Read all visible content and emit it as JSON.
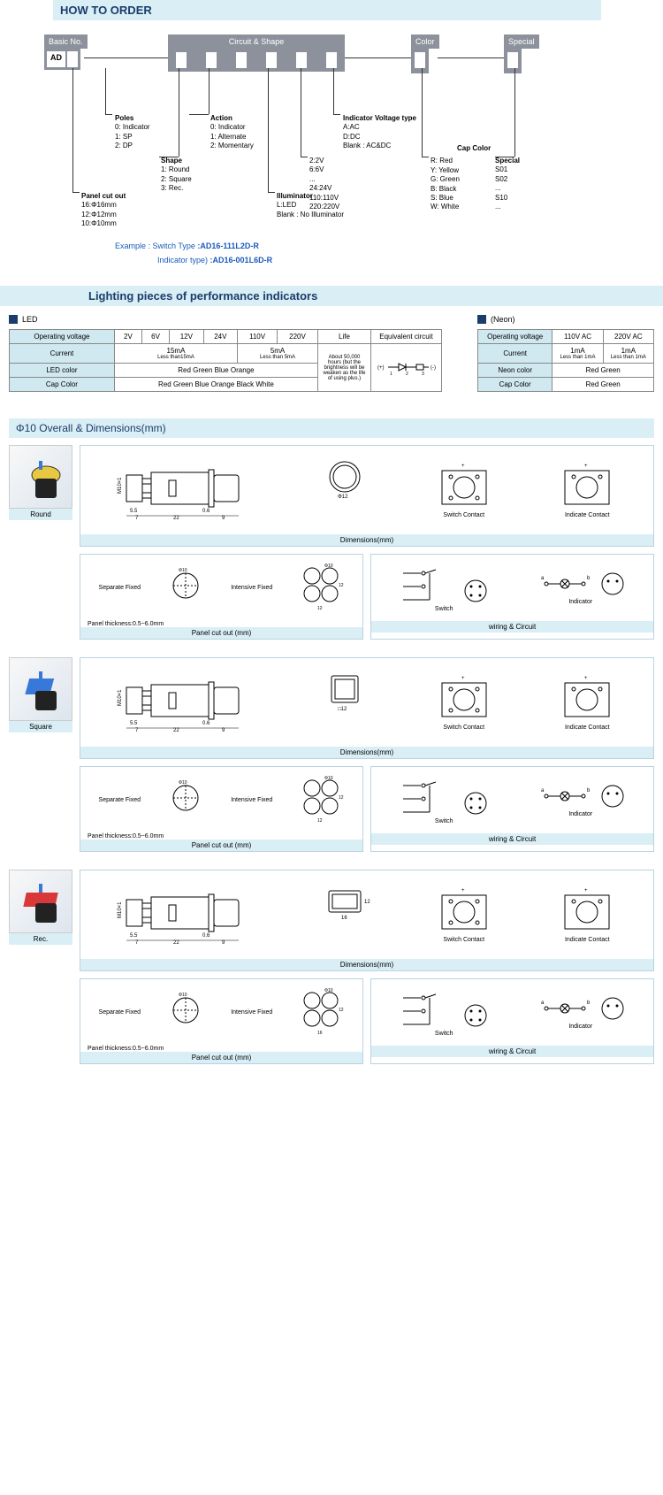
{
  "title": "HOW TO ORDER",
  "basic": {
    "label": "Basic No.",
    "code": "AD"
  },
  "circuit": {
    "label": "Circuit & Shape"
  },
  "color_box": {
    "label": "Color"
  },
  "special_box": {
    "label": "Special"
  },
  "panel_cutout": {
    "title": "Panel cut out",
    "items": [
      "16:Φ16mm",
      "12:Φ12mm",
      "10:Φ10mm"
    ]
  },
  "poles": {
    "title": "Poles",
    "items": [
      "0: Indicator",
      "1: SP",
      "2: DP"
    ]
  },
  "shape": {
    "title": "Shape",
    "items": [
      "1: Round",
      "2: Square",
      "3: Rec."
    ]
  },
  "action": {
    "title": "Action",
    "items": [
      "0: Indicator",
      "1: Alternate",
      "2: Momentary"
    ]
  },
  "illuminator": {
    "title": "Illuminator",
    "items": [
      "L:LED",
      "Blank : No Illuminator"
    ]
  },
  "voltage_list": {
    "items": [
      "2:2V",
      "6:6V",
      "...",
      "24:24V",
      "110:110V",
      "220:220V"
    ]
  },
  "ivt": {
    "title": "Indicator Voltage type",
    "items": [
      "A:AC",
      "D:DC",
      "Blank : AC&DC"
    ]
  },
  "cap_color": {
    "title": "Cap Color",
    "items": [
      "R: Red",
      "Y: Yellow",
      "G: Green",
      "B: Black",
      "S: Blue",
      "W: White"
    ]
  },
  "special": {
    "title": "Special",
    "items": [
      "S01",
      "S02",
      "...",
      "S10",
      "..."
    ]
  },
  "example": {
    "label": "Example : Switch Type",
    "val1": ":AD16-111L2D-R",
    "label2": "Indicator type)",
    "val2": ":AD16-001L6D-R"
  },
  "perf_title": "Lighting pieces of performance indicators",
  "led": {
    "label": "LED",
    "headers": [
      "Operating voltage",
      "2V",
      "6V",
      "12V",
      "24V",
      "110V",
      "220V",
      "Life",
      "Equivalent circuit"
    ],
    "current_label": "Current",
    "current1": "15mA",
    "current1_sub": "Less than15mA",
    "current2": "5mA",
    "current2_sub": "Less than 5mA",
    "ledcolor_label": "LED color",
    "ledcolor": "Red  Green Blue  Orange",
    "capcolor_label": "Cap Color",
    "capcolor": "Red  Green Blue Orange Black White",
    "life": "About 50,000 hours (but the brightness will be weaken as the life of using plus.)",
    "circuit": "(+) 1 → 2 → 3 (-)"
  },
  "neon": {
    "label": "(Neon)",
    "headers": [
      "Operating voltage",
      "110V AC",
      "220V AC"
    ],
    "current_label": "Current",
    "cur1": "1mA",
    "cur1_sub": "Less than 1mA",
    "cur2": "1mA",
    "cur2_sub": "Less than 1mA",
    "neoncolor_label": "Neon color",
    "neoncolor": "Red  Green",
    "capcolor_label": "Cap Color",
    "capcolor": "Red  Green"
  },
  "dims": {
    "title": "Φ10  Overall & Dimensions(mm)",
    "shapes": [
      {
        "name": "Round",
        "color": "#e8c840",
        "width": "Φ12"
      },
      {
        "name": "Square",
        "color": "#3878d8",
        "width": "□12"
      },
      {
        "name": "Rec.",
        "color": "#d83838",
        "width": "16",
        "height": "12"
      }
    ],
    "body_dims": {
      "thread": "M10×1",
      "a": "5.5",
      "b": "7",
      "c": "22",
      "d": "0.6",
      "e": "9"
    },
    "switch_contact": "Switch Contact",
    "indicate_contact": "Indicate Contact",
    "dims_label": "Dimensions(mm)",
    "cutout": {
      "sep": "Separate Fixed",
      "int": "Intensive Fixed",
      "hole": "Φ10",
      "thickness": "Panel thickness:0.5~6.0mm",
      "label": "Panel cut out (mm)",
      "spacing": "12"
    },
    "wiring": {
      "switch": "Switch",
      "indicator": "Indicator",
      "label": "wiring & Circuit",
      "a": "a",
      "b": "b"
    }
  }
}
